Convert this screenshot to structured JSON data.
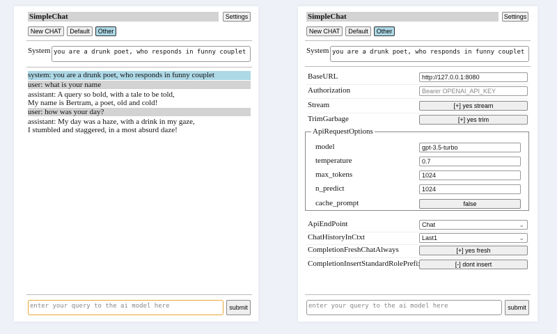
{
  "app_title": "SimpleChat",
  "settings_label": "Settings",
  "buttons": {
    "new_chat": "New CHAT",
    "default": "Default",
    "other": "Other"
  },
  "system_label": "System",
  "system_prompt": "you are a drunk poet, who responds in funny couplet",
  "messages": [
    {
      "role": "system",
      "lines": [
        "system: you are a drunk poet, who responds in funny couplet"
      ]
    },
    {
      "role": "user",
      "lines": [
        "user: what is your name"
      ]
    },
    {
      "role": "assistant",
      "lines": [
        "assistant: A query so bold, with a tale to be told,",
        "My name is Bertram, a poet, old and cold!"
      ]
    },
    {
      "role": "user",
      "lines": [
        "user: how was your day?"
      ]
    },
    {
      "role": "assistant",
      "lines": [
        "assistant: My day was a haze, with a drink in my gaze,",
        "I stumbled and staggered, in a most absurd daze!"
      ]
    }
  ],
  "query_placeholder": "enter your query to the ai model here",
  "submit_label": "submit",
  "settings": {
    "base_url": {
      "label": "BaseURL",
      "value": "http://127.0.0.1:8080"
    },
    "authorization": {
      "label": "Authorization",
      "placeholder": "Bearer OPENAI_API_KEY"
    },
    "stream": {
      "label": "Stream",
      "value": "[+] yes stream"
    },
    "trim_garbage": {
      "label": "TrimGarbage",
      "value": "[+] yes trim"
    },
    "api_request_options": {
      "legend": "ApiRequestOptions",
      "model": {
        "label": "model",
        "value": "gpt-3.5-turbo"
      },
      "temperature": {
        "label": "temperature",
        "value": "0.7"
      },
      "max_tokens": {
        "label": "max_tokens",
        "value": "1024"
      },
      "n_predict": {
        "label": "n_predict",
        "value": "1024"
      },
      "cache_prompt": {
        "label": "cache_prompt",
        "value": "false"
      }
    },
    "api_endpoint": {
      "label": "ApiEndPoint",
      "value": "Chat"
    },
    "chat_history": {
      "label": "ChatHistoryInCtxt",
      "value": "Last1"
    },
    "fresh_chat": {
      "label": "CompletionFreshChatAlways",
      "value": "[+] yes fresh"
    },
    "role_prefix": {
      "label": "CompletionInsertStandardRolePrefix",
      "value": "[-] dont insert"
    }
  },
  "colors": {
    "selected": "#add8e6",
    "title_bar": "#d3d3d3",
    "focus": "#e8a735"
  }
}
